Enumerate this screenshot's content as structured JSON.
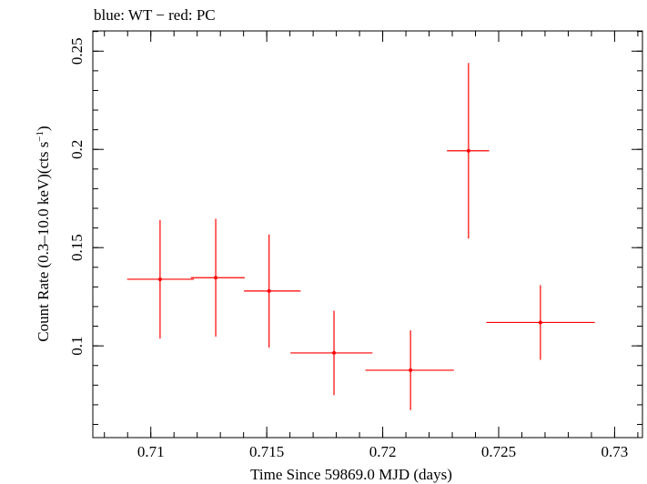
{
  "chart_data": {
    "type": "scatter",
    "title": "blue: WT − red: PC",
    "xlabel": "Time Since 59869.0 MJD (days)",
    "ylabel_main": "Count Rate (0.3–10.0 keV)(cts s",
    "ylabel_sup": "−1",
    "ylabel_end": ")",
    "xlim": [
      0.7075,
      0.7312
    ],
    "ylim": [
      0.0533,
      0.2603
    ],
    "x_ticks": [
      {
        "value": 0.71,
        "label": "0.71"
      },
      {
        "value": 0.715,
        "label": "0.715"
      },
      {
        "value": 0.72,
        "label": "0.72"
      },
      {
        "value": 0.725,
        "label": "0.725"
      },
      {
        "value": 0.73,
        "label": "0.73"
      }
    ],
    "y_ticks": [
      {
        "value": 0.1,
        "label": "0.1"
      },
      {
        "value": 0.15,
        "label": "0.15"
      },
      {
        "value": 0.2,
        "label": "0.2"
      },
      {
        "value": 0.25,
        "label": "0.25"
      }
    ],
    "x_minor_step": 0.001,
    "y_minor_step": 0.01,
    "series": [
      {
        "color": "#ff0000",
        "points": [
          {
            "x": 0.7104,
            "xerr_lo": 0.00142,
            "xerr_hi": 0.00146,
            "y": 0.1339,
            "yerr": 0.0302
          },
          {
            "x": 0.7128,
            "xerr_lo": 0.00107,
            "xerr_hi": 0.00125,
            "y": 0.1347,
            "yerr": 0.03
          },
          {
            "x": 0.7151,
            "xerr_lo": 0.00108,
            "xerr_hi": 0.00136,
            "y": 0.1279,
            "yerr": 0.0288
          },
          {
            "x": 0.7179,
            "xerr_lo": 0.00188,
            "xerr_hi": 0.00166,
            "y": 0.0964,
            "yerr": 0.0215
          },
          {
            "x": 0.7212,
            "xerr_lo": 0.00195,
            "xerr_hi": 0.00187,
            "y": 0.0876,
            "yerr": 0.0203
          },
          {
            "x": 0.7237,
            "xerr_lo": 0.00093,
            "xerr_hi": 0.00089,
            "y": 0.1993,
            "yerr": 0.0447
          },
          {
            "x": 0.7268,
            "xerr_lo": 0.00233,
            "xerr_hi": 0.00235,
            "y": 0.1119,
            "yerr": 0.019
          }
        ]
      }
    ]
  }
}
